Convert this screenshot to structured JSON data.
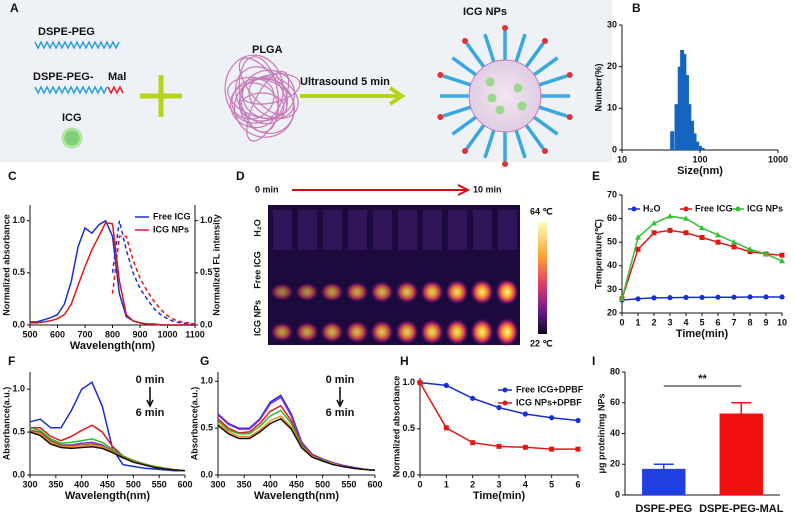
{
  "schematic": {
    "panel": "A",
    "dspe_peg": "DSPE-PEG",
    "dspe_peg_mal": "DSPE-PEG-",
    "mal": "Mal",
    "icg": "ICG",
    "plga": "PLGA",
    "step": "Ultrasound  5 min",
    "product": "ICG NPs"
  },
  "thermal": {
    "panel": "D",
    "start": "0 min",
    "end": "10 min",
    "max": "64 ℃",
    "min": "22 ℃",
    "rows": [
      "H₂O",
      "Free ICG",
      "ICG NPs"
    ]
  },
  "chart_data": [
    {
      "type": "bar",
      "panel": "B",
      "x": [
        44,
        50,
        55,
        59,
        63,
        68,
        73,
        79,
        85,
        92,
        100,
        108
      ],
      "values": [
        4.5,
        11,
        20,
        24,
        23,
        18,
        11,
        7,
        4,
        2,
        1,
        0.5
      ],
      "color": "#1565c0",
      "xlim": [
        10,
        1000
      ],
      "xticks": [
        10,
        100,
        1000
      ],
      "xscale": "log",
      "ylim": [
        0,
        30
      ],
      "yticks": [
        0,
        10,
        20,
        30
      ],
      "xlabel": "Size(nm)",
      "ylabel": "Number(%)"
    },
    {
      "type": "line",
      "panel": "C",
      "x": [
        500,
        525,
        550,
        575,
        600,
        625,
        650,
        675,
        700,
        725,
        750,
        775,
        800,
        825,
        850,
        875,
        900,
        925,
        950,
        975,
        1000,
        1025,
        1050,
        1075,
        1100
      ],
      "series": [
        {
          "name": "Free ICG",
          "color": "#1a2fd0",
          "values": [
            0.03,
            0.03,
            0.05,
            0.07,
            0.1,
            0.2,
            0.42,
            0.75,
            0.93,
            0.88,
            0.96,
            1.0,
            0.85,
            0.3,
            0.08,
            0.04,
            0.02,
            0.01,
            0.01,
            0,
            0,
            0,
            0,
            0,
            0
          ]
        },
        {
          "name": "ICG NPs",
          "color": "#e01818",
          "values": [
            0.02,
            0.02,
            0.03,
            0.04,
            0.06,
            0.1,
            0.2,
            0.38,
            0.56,
            0.72,
            0.85,
            0.98,
            0.97,
            0.42,
            0.1,
            0.04,
            0.02,
            0.01,
            0.01,
            0,
            0,
            0,
            0,
            0,
            0
          ]
        },
        {
          "color": "#1a2fd0",
          "dash": true,
          "axis": "y2",
          "values": [
            null,
            null,
            null,
            null,
            null,
            null,
            null,
            null,
            null,
            null,
            null,
            null,
            0.5,
            1.0,
            0.72,
            0.5,
            0.35,
            0.25,
            0.16,
            0.1,
            0.06,
            0.03,
            0.02,
            0.01,
            0.01
          ]
        },
        {
          "color": "#e01818",
          "dash": true,
          "axis": "y2",
          "values": [
            null,
            null,
            null,
            null,
            null,
            null,
            null,
            null,
            null,
            null,
            null,
            null,
            0.3,
            0.85,
            0.85,
            0.62,
            0.45,
            0.33,
            0.23,
            0.15,
            0.09,
            0.05,
            0.03,
            0.02,
            0.01
          ]
        }
      ],
      "xlim": [
        500,
        1100
      ],
      "xticks": [
        500,
        600,
        700,
        800,
        900,
        1000,
        1100
      ],
      "ylim": [
        0,
        1.15
      ],
      "yticks": [
        {
          "value": 0,
          "label": "0.0"
        },
        {
          "value": 0.5,
          "label": "0.5"
        },
        {
          "value": 1,
          "label": "1.0"
        }
      ],
      "y2lim": [
        0,
        1.15
      ],
      "y2ticks": [
        {
          "value": 0,
          "label": "0.0"
        },
        {
          "value": 0.5,
          "label": "0.5"
        },
        {
          "value": 1,
          "label": "1.0"
        }
      ],
      "xlabel": "Wavelength(nm)",
      "ylabel": "Normalized absorbance",
      "y2label": "Normalized FL intensity",
      "legend": "upper right"
    },
    {
      "type": "line",
      "panel": "E",
      "x": [
        0,
        1,
        2,
        3,
        4,
        5,
        6,
        7,
        8,
        9,
        10
      ],
      "series": [
        {
          "name": "H₂O",
          "color": "#1a2fd0",
          "marker": "circle",
          "values": [
            25.5,
            26,
            26.4,
            26.5,
            26.6,
            26.6,
            26.7,
            26.7,
            26.8,
            26.8,
            26.8
          ]
        },
        {
          "name": "Free ICG",
          "color": "#e01818",
          "marker": "square",
          "values": [
            26,
            47,
            54,
            55,
            54,
            52,
            50,
            48,
            46,
            45,
            44.5
          ]
        },
        {
          "name": "ICG NPs",
          "color": "#35c035",
          "marker": "triangle",
          "values": [
            26,
            52,
            58,
            61,
            60,
            56,
            53,
            50,
            47,
            45,
            42
          ]
        }
      ],
      "xlim": [
        0,
        10
      ],
      "xticks": [
        0,
        1,
        2,
        3,
        4,
        5,
        6,
        7,
        8,
        9,
        10
      ],
      "ylim": [
        20,
        70
      ],
      "yticks": [
        20,
        30,
        40,
        50,
        60,
        70
      ],
      "xlabel": "Time(min)",
      "ylabel": "Temperature(℃)",
      "legend": "top"
    },
    {
      "type": "line",
      "panel": "F",
      "x": [
        300,
        320,
        340,
        360,
        380,
        400,
        420,
        440,
        460,
        480,
        500,
        520,
        540,
        560,
        580,
        600
      ],
      "series": [
        {
          "color": "#1a2fd0",
          "values": [
            0.62,
            0.65,
            0.55,
            0.55,
            0.75,
            1.0,
            1.08,
            0.8,
            0.3,
            0.12,
            0.1,
            0.08,
            0.07,
            0.06,
            0.05,
            0.05
          ]
        },
        {
          "color": "#e01818",
          "values": [
            0.55,
            0.55,
            0.45,
            0.4,
            0.45,
            0.52,
            0.58,
            0.5,
            0.33,
            0.22,
            0.17,
            0.13,
            0.1,
            0.08,
            0.06,
            0.05
          ]
        },
        {
          "color": "#2fb82f",
          "values": [
            0.55,
            0.52,
            0.42,
            0.37,
            0.38,
            0.4,
            0.42,
            0.38,
            0.3,
            0.22,
            0.17,
            0.13,
            0.1,
            0.08,
            0.06,
            0.05
          ]
        },
        {
          "color": "#8a2be2",
          "values": [
            0.52,
            0.5,
            0.4,
            0.35,
            0.35,
            0.37,
            0.38,
            0.35,
            0.28,
            0.2,
            0.16,
            0.12,
            0.09,
            0.07,
            0.06,
            0.05
          ]
        },
        {
          "color": "#8b5a2b",
          "values": [
            0.52,
            0.5,
            0.4,
            0.35,
            0.34,
            0.35,
            0.36,
            0.34,
            0.28,
            0.21,
            0.16,
            0.12,
            0.09,
            0.07,
            0.06,
            0.05
          ]
        },
        {
          "color": "#f08c1c",
          "values": [
            0.5,
            0.48,
            0.38,
            0.33,
            0.33,
            0.34,
            0.35,
            0.33,
            0.27,
            0.2,
            0.16,
            0.12,
            0.09,
            0.07,
            0.06,
            0.05
          ]
        },
        {
          "color": "#111111",
          "values": [
            0.5,
            0.46,
            0.36,
            0.32,
            0.31,
            0.32,
            0.33,
            0.31,
            0.26,
            0.2,
            0.15,
            0.12,
            0.09,
            0.07,
            0.06,
            0.05
          ]
        }
      ],
      "xlim": [
        300,
        600
      ],
      "xticks": [
        300,
        350,
        400,
        450,
        500,
        550,
        600
      ],
      "ylim": [
        0,
        1.2
      ],
      "yticks": [
        {
          "value": 0,
          "label": "0.0"
        },
        {
          "value": 0.5,
          "label": "0.5"
        },
        {
          "value": 1,
          "label": "1.0"
        }
      ],
      "xlabel": "Wavelength(nm)",
      "ylabel": "Absorbance(a.u.)",
      "annotations": [
        "0 min",
        "6 min"
      ]
    },
    {
      "type": "line",
      "panel": "G",
      "x": [
        300,
        320,
        340,
        360,
        380,
        400,
        420,
        440,
        460,
        480,
        500,
        520,
        540,
        560,
        580,
        600
      ],
      "series": [
        {
          "color": "#1a2fd0",
          "values": [
            0.65,
            0.55,
            0.5,
            0.5,
            0.6,
            0.78,
            0.85,
            0.65,
            0.35,
            0.22,
            0.17,
            0.13,
            0.1,
            0.08,
            0.06,
            0.05
          ]
        },
        {
          "color": "#8a2be2",
          "values": [
            0.64,
            0.54,
            0.49,
            0.49,
            0.59,
            0.76,
            0.83,
            0.63,
            0.34,
            0.22,
            0.17,
            0.13,
            0.1,
            0.08,
            0.06,
            0.05
          ]
        },
        {
          "color": "#e01818",
          "values": [
            0.6,
            0.5,
            0.45,
            0.46,
            0.55,
            0.68,
            0.74,
            0.58,
            0.32,
            0.21,
            0.16,
            0.12,
            0.09,
            0.07,
            0.06,
            0.05
          ]
        },
        {
          "color": "#2fb82f",
          "values": [
            0.58,
            0.48,
            0.44,
            0.44,
            0.52,
            0.63,
            0.69,
            0.55,
            0.31,
            0.2,
            0.16,
            0.12,
            0.09,
            0.07,
            0.06,
            0.05
          ]
        },
        {
          "color": "#f08c1c",
          "values": [
            0.55,
            0.46,
            0.41,
            0.41,
            0.48,
            0.58,
            0.63,
            0.51,
            0.3,
            0.2,
            0.15,
            0.12,
            0.09,
            0.07,
            0.06,
            0.05
          ]
        },
        {
          "color": "#111111",
          "values": [
            0.53,
            0.44,
            0.39,
            0.39,
            0.46,
            0.55,
            0.6,
            0.49,
            0.29,
            0.19,
            0.15,
            0.11,
            0.09,
            0.07,
            0.06,
            0.05
          ]
        }
      ],
      "xlim": [
        300,
        600
      ],
      "xticks": [
        300,
        350,
        400,
        450,
        500,
        550,
        600
      ],
      "ylim": [
        0,
        1.1
      ],
      "yticks": [
        {
          "value": 0,
          "label": "0.0"
        },
        {
          "value": 0.5,
          "label": "0.5"
        },
        {
          "value": 1,
          "label": "1.0"
        }
      ],
      "xlabel": "Wavelength(nm)",
      "ylabel": "Absorbance(a.u.)",
      "annotations": [
        "0 min",
        "6 min"
      ]
    },
    {
      "type": "line",
      "panel": "H",
      "x": [
        0,
        1,
        2,
        3,
        4,
        5,
        6
      ],
      "series": [
        {
          "name": "Free ICG+DPBF",
          "color": "#1a2fd0",
          "marker": "circle",
          "values": [
            1.0,
            0.97,
            0.83,
            0.73,
            0.66,
            0.62,
            0.59
          ]
        },
        {
          "name": "ICG NPs+DPBF",
          "color": "#e01818",
          "marker": "square",
          "values": [
            1.0,
            0.51,
            0.35,
            0.31,
            0.3,
            0.28,
            0.28
          ]
        }
      ],
      "xlim": [
        0,
        6
      ],
      "xticks": [
        0,
        1,
        2,
        3,
        4,
        5,
        6
      ],
      "ylim": [
        0,
        1.05
      ],
      "yticks": [
        {
          "value": 0,
          "label": "0.0"
        },
        {
          "value": 0.5,
          "label": "0.5"
        },
        {
          "value": 1,
          "label": "1.0"
        }
      ],
      "xlabel": "Time(min)",
      "ylabel": "Normalized absorbance",
      "legend": "upper right"
    },
    {
      "type": "bar",
      "panel": "I",
      "categories": [
        "DSPE-PEG",
        "DSPE-PEG-MAL"
      ],
      "values": [
        17,
        53
      ],
      "errors": [
        3,
        7
      ],
      "colors": [
        "#1f3fe0",
        "#f01010"
      ],
      "ylim": [
        0,
        80
      ],
      "yticks": [
        0,
        20,
        40,
        60,
        80
      ],
      "ylabel": "μg protein/mg NPs",
      "annotations": [
        "**"
      ]
    }
  ]
}
